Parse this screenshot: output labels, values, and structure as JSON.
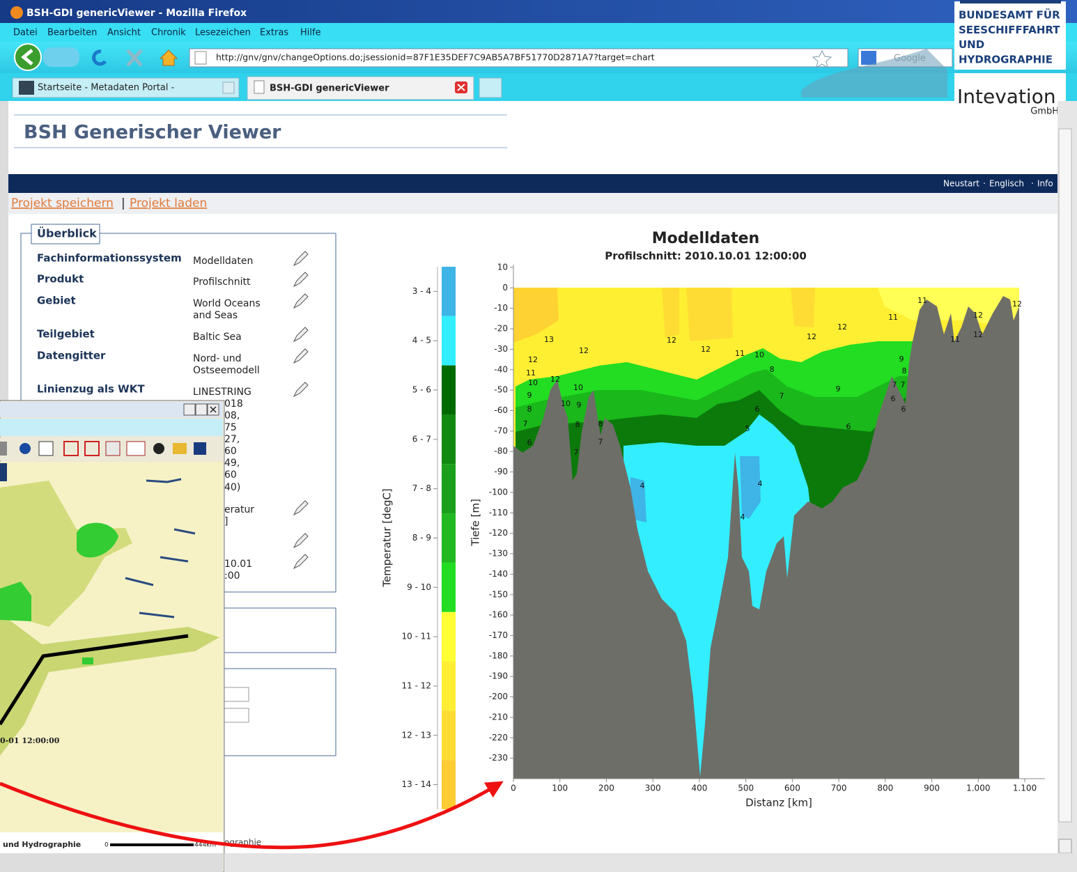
{
  "window": {
    "title": "BSH-GDI genericViewer - Mozilla Firefox"
  },
  "menu": [
    "Datei",
    "Bearbeiten",
    "Ansicht",
    "Chronik",
    "Lesezeichen",
    "Extras",
    "Hilfe"
  ],
  "url": "http://gnv/gnv/changeOptions.do;jsessionid=87F1E35DEF7C9AB5A7BF51770D2871A7?target=chart",
  "search_placeholder": "Google",
  "tabs": [
    "Startseite - Metadaten Portal -",
    "BSH-GDI genericViewer"
  ],
  "logos": {
    "bsh": [
      "BUNDESAMT FÜR",
      "SEESCHIFFFAHRT",
      "UND",
      "HYDROGRAPHIE"
    ],
    "intevation": "Intevation",
    "intevation_sub": "GmbH"
  },
  "header": {
    "title": "BSH Generischer Viewer"
  },
  "nav": {
    "items": [
      "Neustart",
      "Englisch",
      "Info"
    ],
    "separator": "·"
  },
  "project_links": {
    "items": [
      "Projekt speichern",
      "Projekt laden"
    ],
    "separator": "|"
  },
  "overview": {
    "title": "Überblick",
    "rows": [
      {
        "label": "Fachinformationssystem",
        "value": [
          "Modelldaten"
        ]
      },
      {
        "label": "Produkt",
        "value": [
          "Profilschnitt"
        ]
      },
      {
        "label": "Gebiet",
        "value": [
          "World Oceans",
          "and Seas"
        ]
      },
      {
        "label": "Teilgebiet",
        "value": [
          "Baltic Sea"
        ]
      },
      {
        "label": "Datengitter",
        "value": [
          "Nord- und",
          "Ostseemodell"
        ]
      },
      {
        "label": "Linienzug als WKT",
        "value": [
          "LINESTRING"
        ]
      }
    ],
    "overflow_fragments": [
      "018",
      "08,",
      "75",
      "27,",
      "60",
      "49,",
      "60",
      "40)",
      "eratur",
      "]",
      "10.01",
      ":00"
    ]
  },
  "behind_text": "ographie",
  "map_window": {
    "timestamp": "0-01 12:00:00",
    "footer": "und Hydrographie",
    "scale_start": "0",
    "scale_end": "444km"
  },
  "chart": {
    "title": "Modelldaten",
    "subtitle": "Profilschnitt: 2010.10.01 12:00:00",
    "y_label": "Tiefe [m]",
    "x_label": "Distanz [km]",
    "ylim": [
      -240,
      10
    ],
    "xlim": [
      0,
      1150
    ],
    "yticks": [
      10,
      0,
      -10,
      -20,
      -30,
      -40,
      -50,
      -60,
      -70,
      -80,
      -90,
      -100,
      -110,
      -120,
      -130,
      -140,
      -150,
      -160,
      -170,
      -180,
      -190,
      -200,
      -210,
      -220,
      -230
    ],
    "xticks": [
      0,
      100,
      200,
      300,
      400,
      500,
      600,
      700,
      800,
      900,
      {
        "value": 1000,
        "label": "1.000"
      },
      {
        "value": 1100,
        "label": "1.100"
      }
    ],
    "legend_label": "Temperatur [degC]",
    "legend": [
      {
        "label": "3 - 4",
        "color": "#3fb4e6"
      },
      {
        "label": "4 - 5",
        "color": "#33eeff"
      },
      {
        "label": "5 - 6",
        "color": "#006a00"
      },
      {
        "label": "6 - 7",
        "color": "#128a12"
      },
      {
        "label": "7 - 8",
        "color": "#1a9f1a"
      },
      {
        "label": "8 - 9",
        "color": "#22b822"
      },
      {
        "label": "9 - 10",
        "color": "#22dd22"
      },
      {
        "label": "10 - 11",
        "color": "#ffff33"
      },
      {
        "label": "11 - 12",
        "color": "#ffee33"
      },
      {
        "label": "12 - 13",
        "color": "#ffdc33"
      },
      {
        "label": "13 - 14",
        "color": "#ffcc33"
      }
    ],
    "contour_labels": [
      "13",
      "12",
      "12",
      "12",
      "12",
      "12",
      "11",
      "10",
      "11",
      "11",
      "12",
      "12",
      "12",
      "11",
      "12",
      "11",
      "10",
      "12",
      "10",
      "9",
      "8",
      "7",
      "6",
      "10",
      "9",
      "8",
      "8",
      "7",
      "7",
      "8",
      "7",
      "9",
      "6",
      "5",
      "6",
      "9",
      "8",
      "7",
      "7",
      "6",
      "6",
      "4",
      "4",
      "4"
    ]
  }
}
